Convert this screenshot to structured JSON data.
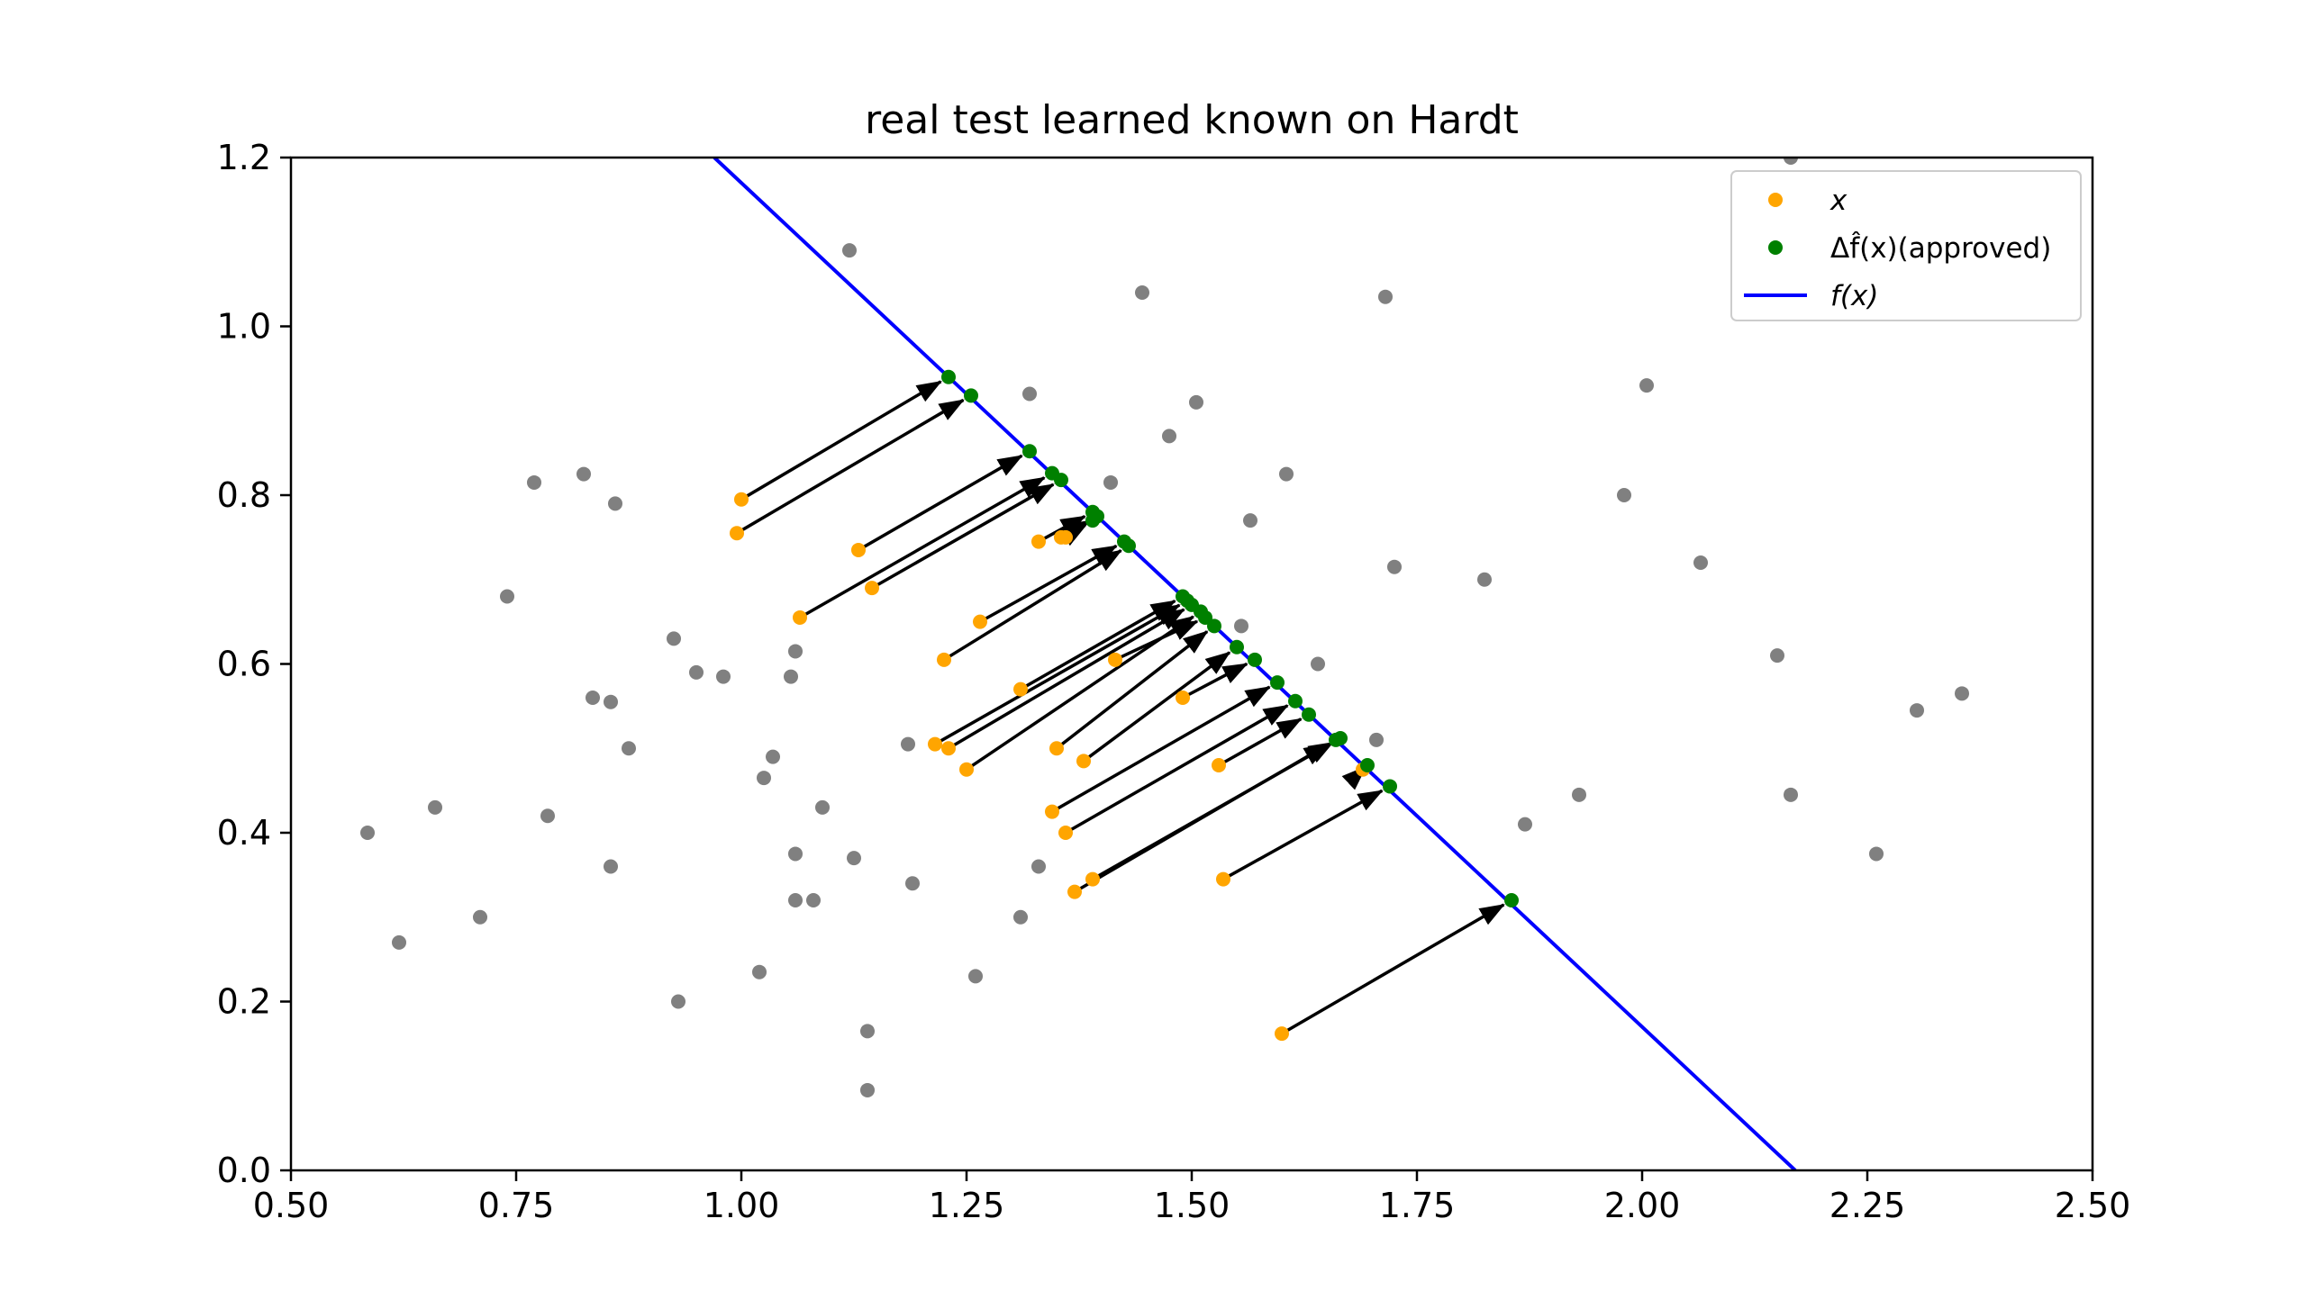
{
  "chart_data": {
    "type": "scatter",
    "title": "real test learned known on Hardt",
    "xlabel": "",
    "ylabel": "",
    "xlim": [
      0.5,
      2.5
    ],
    "ylim": [
      0.0,
      1.2
    ],
    "xticks": [
      0.5,
      0.75,
      1.0,
      1.25,
      1.5,
      1.75,
      2.0,
      2.25,
      2.5
    ],
    "xtick_labels": [
      "0.50",
      "0.75",
      "1.00",
      "1.25",
      "1.50",
      "1.75",
      "2.00",
      "2.25",
      "2.50"
    ],
    "yticks": [
      0.0,
      0.2,
      0.4,
      0.6,
      0.8,
      1.0,
      1.2
    ],
    "ytick_labels": [
      "0.0",
      "0.2",
      "0.4",
      "0.6",
      "0.8",
      "1.0",
      "1.2"
    ],
    "grid": false,
    "legend_position": "top-right",
    "legend": [
      {
        "label": "x",
        "style": "point",
        "color": "#ffa500"
      },
      {
        "label": "Δf̂(x)(approved)",
        "style": "point",
        "color": "#008000"
      },
      {
        "label": "f(x)",
        "style": "line",
        "color": "#0000ff"
      }
    ],
    "colors": {
      "gray_points": "#808080",
      "x_points": "#ffa500",
      "moved_points": "#008000",
      "line": "#0000ff",
      "arrows": "#000000"
    },
    "decision_line": [
      [
        0.97,
        1.2
      ],
      [
        2.17,
        0.0
      ]
    ],
    "gray_points": [
      [
        0.585,
        0.4
      ],
      [
        0.62,
        0.27
      ],
      [
        0.66,
        0.43
      ],
      [
        0.71,
        0.3
      ],
      [
        0.74,
        0.68
      ],
      [
        0.77,
        0.815
      ],
      [
        0.785,
        0.42
      ],
      [
        0.825,
        0.825
      ],
      [
        0.835,
        0.56
      ],
      [
        0.855,
        0.555
      ],
      [
        0.855,
        0.36
      ],
      [
        0.86,
        0.79
      ],
      [
        0.875,
        0.5
      ],
      [
        0.925,
        0.63
      ],
      [
        0.93,
        0.2
      ],
      [
        0.95,
        0.59
      ],
      [
        0.98,
        0.585
      ],
      [
        1.02,
        0.235
      ],
      [
        1.025,
        0.465
      ],
      [
        1.035,
        0.49
      ],
      [
        1.055,
        0.585
      ],
      [
        1.06,
        0.615
      ],
      [
        1.06,
        0.375
      ],
      [
        1.06,
        0.32
      ],
      [
        1.08,
        0.32
      ],
      [
        1.09,
        0.43
      ],
      [
        1.12,
        1.09
      ],
      [
        1.125,
        0.37
      ],
      [
        1.14,
        0.095
      ],
      [
        1.14,
        0.165
      ],
      [
        1.185,
        0.505
      ],
      [
        1.19,
        0.34
      ],
      [
        1.26,
        0.23
      ],
      [
        1.32,
        0.92
      ],
      [
        1.31,
        0.3
      ],
      [
        1.33,
        0.36
      ],
      [
        1.41,
        0.815
      ],
      [
        1.445,
        1.04
      ],
      [
        1.475,
        0.87
      ],
      [
        1.505,
        0.91
      ],
      [
        1.555,
        0.645
      ],
      [
        1.565,
        0.77
      ],
      [
        1.605,
        0.825
      ],
      [
        1.64,
        0.6
      ],
      [
        1.705,
        0.51
      ],
      [
        1.715,
        1.035
      ],
      [
        1.725,
        0.715
      ],
      [
        1.825,
        0.7
      ],
      [
        1.87,
        0.41
      ],
      [
        1.93,
        0.445
      ],
      [
        1.98,
        0.8
      ],
      [
        2.005,
        0.93
      ],
      [
        2.065,
        0.72
      ],
      [
        2.15,
        0.61
      ],
      [
        2.165,
        0.445
      ],
      [
        2.165,
        1.2
      ],
      [
        2.26,
        0.375
      ],
      [
        2.305,
        0.545
      ],
      [
        2.355,
        0.565
      ]
    ],
    "moves": [
      [
        1.0,
        0.795,
        1.23,
        0.94
      ],
      [
        0.995,
        0.755,
        1.255,
        0.918
      ],
      [
        1.13,
        0.735,
        1.32,
        0.852
      ],
      [
        1.065,
        0.655,
        1.345,
        0.826
      ],
      [
        1.145,
        0.69,
        1.355,
        0.818
      ],
      [
        1.33,
        0.745,
        1.39,
        0.78
      ],
      [
        1.355,
        0.75,
        1.395,
        0.775
      ],
      [
        1.36,
        0.75,
        1.39,
        0.77
      ],
      [
        1.265,
        0.65,
        1.425,
        0.745
      ],
      [
        1.225,
        0.605,
        1.43,
        0.74
      ],
      [
        1.31,
        0.57,
        1.49,
        0.68
      ],
      [
        1.215,
        0.505,
        1.495,
        0.675
      ],
      [
        1.23,
        0.5,
        1.5,
        0.67
      ],
      [
        1.25,
        0.475,
        1.51,
        0.662
      ],
      [
        1.415,
        0.605,
        1.515,
        0.655
      ],
      [
        1.35,
        0.5,
        1.525,
        0.645
      ],
      [
        1.38,
        0.485,
        1.55,
        0.62
      ],
      [
        1.49,
        0.56,
        1.57,
        0.605
      ],
      [
        1.345,
        0.425,
        1.595,
        0.578
      ],
      [
        1.36,
        0.4,
        1.615,
        0.556
      ],
      [
        1.53,
        0.48,
        1.63,
        0.54
      ],
      [
        1.37,
        0.33,
        1.66,
        0.51
      ],
      [
        1.39,
        0.345,
        1.665,
        0.512
      ],
      [
        1.69,
        0.475,
        1.695,
        0.48
      ],
      [
        1.535,
        0.345,
        1.72,
        0.455
      ],
      [
        1.6,
        0.162,
        1.855,
        0.32
      ]
    ]
  }
}
